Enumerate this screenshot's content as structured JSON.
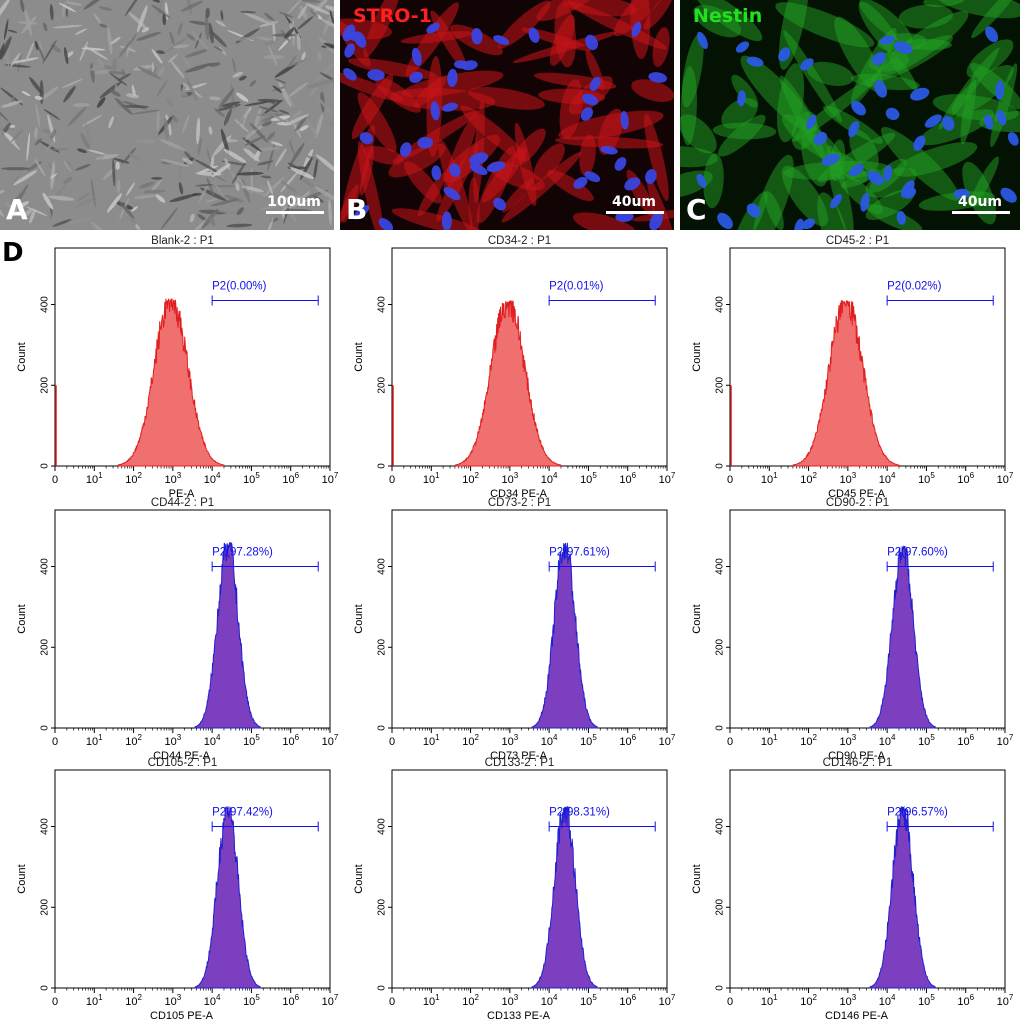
{
  "panels": [
    {
      "letter": "A",
      "stain": "",
      "scale": "100um",
      "color": "#9a9a9a"
    },
    {
      "letter": "B",
      "stain": "STRO-1",
      "stain_color": "#ff2020",
      "scale": "40um",
      "color": "#d01818"
    },
    {
      "letter": "C",
      "stain": "Nestin",
      "stain_color": "#20e020",
      "scale": "40um",
      "color": "#18b018"
    }
  ],
  "panel_d_label": "D",
  "axis": {
    "y_label": "Count",
    "y_ticks": [
      "0",
      "200",
      "400"
    ],
    "x_tick_bases": [
      "0",
      "10",
      "10",
      "10",
      "10",
      "10",
      "10",
      "10"
    ],
    "x_tick_exponents": [
      "",
      "1",
      "2",
      "3",
      "4",
      "5",
      "6",
      "7"
    ]
  },
  "chart_data": [
    {
      "type": "area",
      "title": "Blank-2 : P1",
      "xlabel": "PE-A",
      "ylabel": "Count",
      "gate": "P2(0.00%)",
      "peak_x": 900,
      "peak_count": 415,
      "color": "#f07070",
      "ylim": [
        0,
        540
      ],
      "x_scale": "log"
    },
    {
      "type": "area",
      "title": "CD34-2 : P1",
      "xlabel": "CD34 PE-A",
      "ylabel": "Count",
      "gate": "P2(0.01%)",
      "peak_x": 900,
      "peak_count": 410,
      "color": "#f07070",
      "ylim": [
        0,
        540
      ],
      "x_scale": "log"
    },
    {
      "type": "area",
      "title": "CD45-2 : P1",
      "xlabel": "CD45 PE-A",
      "ylabel": "Count",
      "gate": "P2(0.02%)",
      "peak_x": 900,
      "peak_count": 410,
      "color": "#f07070",
      "ylim": [
        0,
        540
      ],
      "x_scale": "log"
    },
    {
      "type": "area",
      "title": "CD44-2 : P1",
      "xlabel": "CD44 PE-A",
      "ylabel": "Count",
      "gate": "P2(97.28%)",
      "peak_x": 25000,
      "peak_count": 460,
      "color": "#7b3fc0",
      "ylim": [
        0,
        540
      ],
      "x_scale": "log"
    },
    {
      "type": "area",
      "title": "CD73-2 : P1",
      "xlabel": "CD73 PE-A",
      "ylabel": "Count",
      "gate": "P2(97.61%)",
      "peak_x": 25000,
      "peak_count": 460,
      "color": "#7b3fc0",
      "ylim": [
        0,
        540
      ],
      "x_scale": "log"
    },
    {
      "type": "area",
      "title": "CD90-2 : P1",
      "xlabel": "CD90 PE-A",
      "ylabel": "Count",
      "gate": "P2(97.60%)",
      "peak_x": 25000,
      "peak_count": 450,
      "color": "#7b3fc0",
      "ylim": [
        0,
        540
      ],
      "x_scale": "log"
    },
    {
      "type": "area",
      "title": "CD105-2 : P1",
      "xlabel": "CD105 PE-A",
      "ylabel": "Count",
      "gate": "P2(97.42%)",
      "peak_x": 25000,
      "peak_count": 450,
      "color": "#7b3fc0",
      "ylim": [
        0,
        540
      ],
      "x_scale": "log"
    },
    {
      "type": "area",
      "title": "CD133-2 : P1",
      "xlabel": "CD133 PE-A",
      "ylabel": "Count",
      "gate": "P2(98.31%)",
      "peak_x": 25000,
      "peak_count": 450,
      "color": "#7b3fc0",
      "ylim": [
        0,
        540
      ],
      "x_scale": "log"
    },
    {
      "type": "area",
      "title": "CD146-2 : P1",
      "xlabel": "CD146 PE-A",
      "ylabel": "Count",
      "gate": "P2(96.57%)",
      "peak_x": 25000,
      "peak_count": 450,
      "color": "#7b3fc0",
      "ylim": [
        0,
        540
      ],
      "x_scale": "log"
    }
  ],
  "colors": {
    "axis": "#000000",
    "gate": "#1010ee",
    "title": "#222222"
  }
}
